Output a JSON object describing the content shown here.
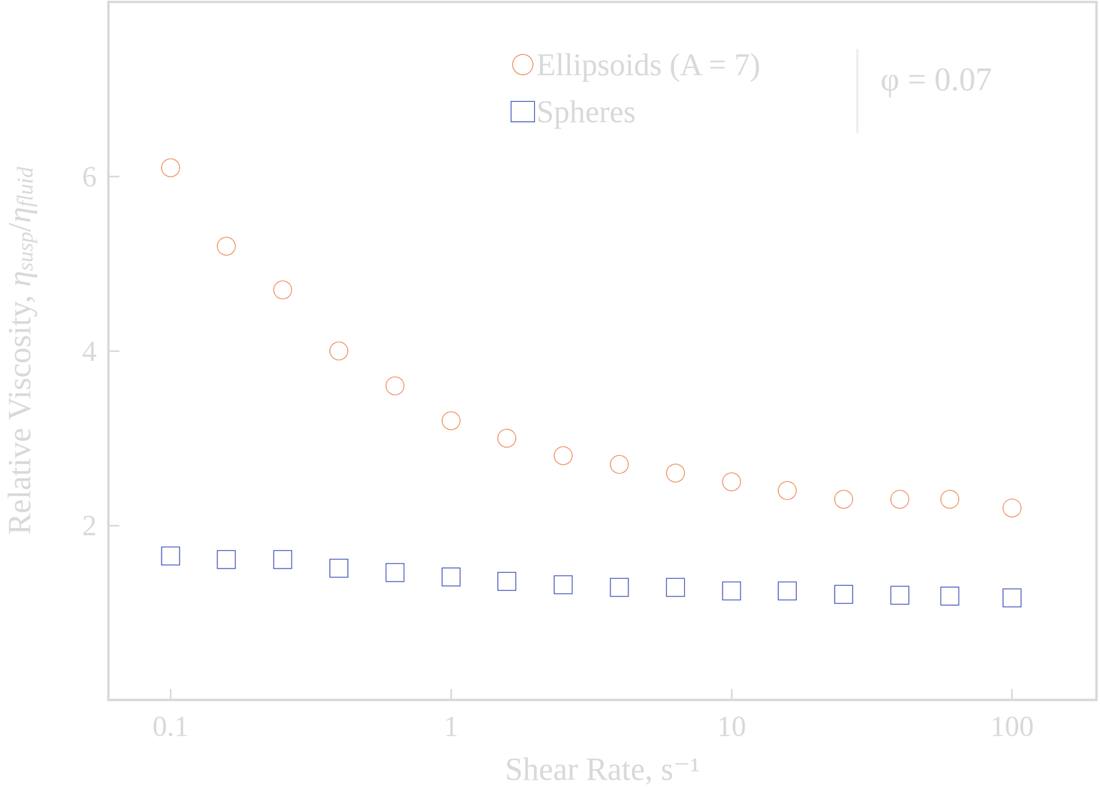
{
  "chart_data": {
    "type": "scatter",
    "x_label": "Shear Rate, s⁻¹",
    "y_label": "Relative Viscosity, ηsusp/ηfluid",
    "annotations": [
      "φ = 0.07"
    ],
    "x": [
      0.1,
      0.158,
      0.251,
      0.398,
      0.631,
      1,
      1.58,
      2.51,
      3.98,
      6.31,
      10,
      15.8,
      25.1,
      39.8,
      60,
      100
    ],
    "series": [
      {
        "name": "Ellipsoids (A = 7)",
        "color": "#e8692a",
        "marker": "circle",
        "values": [
          6.1,
          5.2,
          4.7,
          4.0,
          3.6,
          3.2,
          3.0,
          2.8,
          2.7,
          2.6,
          2.5,
          2.4,
          2.3,
          2.3,
          2.3,
          2.2
        ]
      },
      {
        "name": "Spheres",
        "color": "#0a22a8",
        "marker": "square",
        "values": [
          1.65,
          1.61,
          1.61,
          1.51,
          1.46,
          1.41,
          1.36,
          1.32,
          1.29,
          1.29,
          1.25,
          1.25,
          1.21,
          1.2,
          1.19,
          1.17
        ]
      }
    ],
    "xlim": [
      0.06,
      200
    ],
    "ylim": [
      0,
      8
    ],
    "xticks": [
      0.1,
      1,
      10,
      100
    ],
    "yticks": [
      2,
      4,
      6
    ],
    "log": "x",
    "grid": false,
    "legend": "upper right"
  }
}
